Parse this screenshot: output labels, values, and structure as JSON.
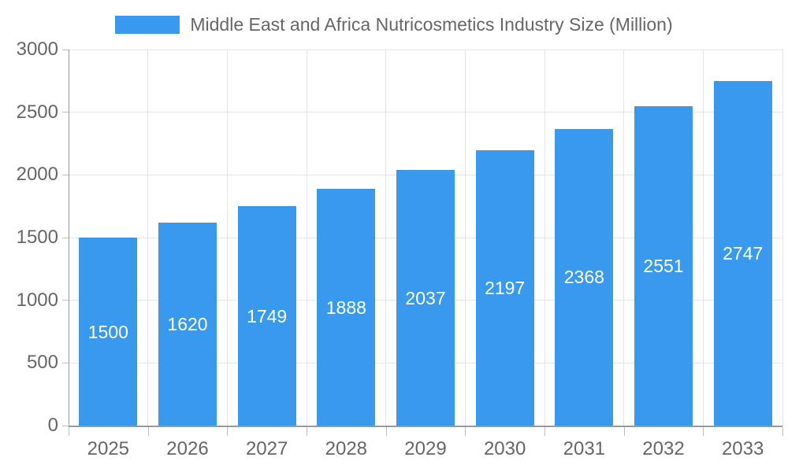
{
  "chart_data": {
    "type": "bar",
    "title": "Middle East and Africa Nutricosmetics Industry Size (Million)",
    "categories": [
      "2025",
      "2026",
      "2027",
      "2028",
      "2029",
      "2030",
      "2031",
      "2032",
      "2033"
    ],
    "values": [
      1500,
      1620,
      1749,
      1888,
      2037,
      2197,
      2368,
      2551,
      2747
    ],
    "xlabel": "",
    "ylabel": "",
    "ylim": [
      0,
      3000
    ],
    "yticks": [
      0,
      500,
      1000,
      1500,
      2000,
      2500,
      3000
    ],
    "grid": true,
    "legend_position": "top",
    "colors": {
      "bar": "#3999ec",
      "value_label": "#ffffff",
      "text": "#666666",
      "grid": "#e3e3e3",
      "axis": "#999999",
      "tick": "#bdbdbd",
      "background": "#ffffff"
    }
  }
}
